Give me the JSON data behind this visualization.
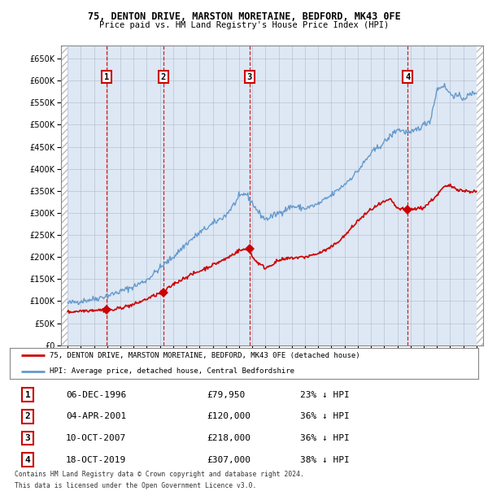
{
  "title1": "75, DENTON DRIVE, MARSTON MORETAINE, BEDFORD, MK43 0FE",
  "title2": "Price paid vs. HM Land Registry's House Price Index (HPI)",
  "legend_line1": "75, DENTON DRIVE, MARSTON MORETAINE, BEDFORD, MK43 0FE (detached house)",
  "legend_line2": "HPI: Average price, detached house, Central Bedfordshire",
  "footer1": "Contains HM Land Registry data © Crown copyright and database right 2024.",
  "footer2": "This data is licensed under the Open Government Licence v3.0.",
  "sale_dates": [
    "06-DEC-1996",
    "04-APR-2001",
    "10-OCT-2007",
    "18-OCT-2019"
  ],
  "sale_prices": [
    79950,
    120000,
    218000,
    307000
  ],
  "sale_prices_str": [
    "£79,950",
    "£120,000",
    "£218,000",
    "£307,000"
  ],
  "sale_hpi_pct": [
    "23% ↓ HPI",
    "36% ↓ HPI",
    "36% ↓ HPI",
    "38% ↓ HPI"
  ],
  "sale_years": [
    1996.93,
    2001.26,
    2007.79,
    2019.79
  ],
  "annotation_labels": [
    "1",
    "2",
    "3",
    "4"
  ],
  "red_color": "#cc0000",
  "blue_color": "#6699cc",
  "bg_color": "#dde8f4",
  "grid_color": "#b0b8cc",
  "dashed_line_color": "#cc0000",
  "hatch_color": "#bbbbbb",
  "ylim": [
    0,
    680000
  ],
  "xlim_start": 1993.5,
  "xlim_end": 2025.5,
  "hpi_anchors_x": [
    1994,
    1995,
    1996,
    1997,
    1998,
    1999,
    2000,
    2001,
    2002,
    2003,
    2004,
    2005,
    2006,
    2007,
    2007.5,
    2008.5,
    2009,
    2010,
    2011,
    2012,
    2013,
    2014,
    2015,
    2016,
    2017,
    2018,
    2019,
    2020,
    2021,
    2021.5,
    2022,
    2022.5,
    2023,
    2024,
    2025
  ],
  "hpi_anchors_y": [
    95000,
    100000,
    105000,
    112000,
    122000,
    133000,
    148000,
    175000,
    200000,
    230000,
    255000,
    275000,
    295000,
    335000,
    345000,
    300000,
    285000,
    300000,
    315000,
    310000,
    320000,
    340000,
    365000,
    395000,
    435000,
    460000,
    490000,
    480000,
    500000,
    510000,
    580000,
    590000,
    570000,
    560000,
    575000
  ],
  "red_anchors_x": [
    1994,
    1995,
    1996,
    1996.93,
    1997.5,
    1998,
    1999,
    2000,
    2001,
    2001.26,
    2002,
    2003,
    2004,
    2005,
    2006,
    2007,
    2007.79,
    2008,
    2008.5,
    2009,
    2010,
    2011,
    2012,
    2013,
    2014,
    2015,
    2016,
    2017,
    2018,
    2018.5,
    2019,
    2019.79,
    2020,
    2021,
    2022,
    2022.5,
    2023,
    2023.5,
    2024,
    2025
  ],
  "red_anchors_y": [
    75000,
    78000,
    80000,
    79950,
    80000,
    85000,
    92000,
    105000,
    118000,
    120000,
    138000,
    155000,
    168000,
    182000,
    196000,
    215000,
    218000,
    200000,
    185000,
    175000,
    192000,
    198000,
    200000,
    208000,
    222000,
    248000,
    282000,
    308000,
    325000,
    330000,
    310000,
    307000,
    308000,
    312000,
    340000,
    358000,
    362000,
    355000,
    350000,
    348000
  ]
}
